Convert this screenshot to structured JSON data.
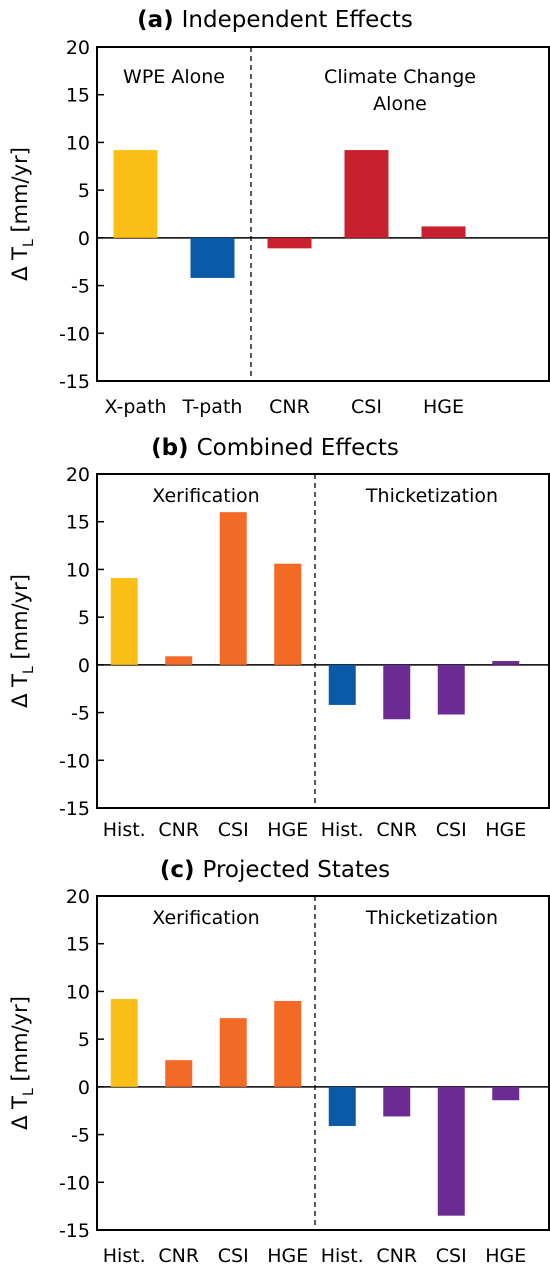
{
  "colors": {
    "yellow": "#fcbf17",
    "blue": "#0b5aa8",
    "red": "#c8202f",
    "orange": "#f26a26",
    "purple": "#6b2b93"
  },
  "chart_data": [
    {
      "type": "bar",
      "panel_letter": "(a)",
      "title": "Independent Effects",
      "ylabel": "Δ T_L [mm/yr]",
      "ylabel_main": "Δ T",
      "ylabel_sub": "L",
      "ylabel_units": "[mm/yr]",
      "ylim": [
        -15,
        20
      ],
      "yticks": [
        20,
        15,
        10,
        5,
        0,
        -5,
        -10,
        -15
      ],
      "categories": [
        "X-path",
        "T-path",
        "CNR",
        "CSI",
        "HGE"
      ],
      "values": [
        9.2,
        -4.2,
        -1.1,
        9.2,
        1.2
      ],
      "bar_colors": [
        "yellow",
        "blue",
        "red",
        "red",
        "red"
      ],
      "groups": [
        {
          "label_lines": [
            "WPE Alone"
          ]
        },
        {
          "label_lines": [
            "Climate Change",
            "Alone"
          ]
        }
      ],
      "divider_after_category": 1
    },
    {
      "type": "bar",
      "panel_letter": "(b)",
      "title": "Combined Effects",
      "ylabel": "Δ T_L [mm/yr]",
      "ylabel_main": "Δ T",
      "ylabel_sub": "L",
      "ylabel_units": "[mm/yr]",
      "ylim": [
        -15,
        20
      ],
      "yticks": [
        20,
        15,
        10,
        5,
        0,
        -5,
        -10,
        -15
      ],
      "categories": [
        "Hist.",
        "CNR",
        "CSI",
        "HGE",
        "Hist.",
        "CNR",
        "CSI",
        "HGE"
      ],
      "values": [
        9.1,
        0.9,
        16.0,
        10.6,
        -4.2,
        -5.7,
        -5.2,
        0.4
      ],
      "bar_colors": [
        "yellow",
        "orange",
        "orange",
        "orange",
        "blue",
        "purple",
        "purple",
        "purple"
      ],
      "groups": [
        {
          "label_lines": [
            "Xerification"
          ]
        },
        {
          "label_lines": [
            "Thicketization"
          ]
        }
      ],
      "divider_after_category": 3
    },
    {
      "type": "bar",
      "panel_letter": "(c)",
      "title": "Projected States",
      "ylabel": "Δ T_L [mm/yr]",
      "ylabel_main": "Δ T",
      "ylabel_sub": "L",
      "ylabel_units": "[mm/yr]",
      "ylim": [
        -15,
        20
      ],
      "yticks": [
        20,
        15,
        10,
        5,
        0,
        -5,
        -10,
        -15
      ],
      "categories": [
        "Hist.",
        "CNR",
        "CSI",
        "HGE",
        "Hist.",
        "CNR",
        "CSI",
        "HGE"
      ],
      "values": [
        9.2,
        2.8,
        7.2,
        9.0,
        -4.1,
        -3.1,
        -13.5,
        -1.4
      ],
      "bar_colors": [
        "yellow",
        "orange",
        "orange",
        "orange",
        "blue",
        "purple",
        "purple",
        "purple"
      ],
      "groups": [
        {
          "label_lines": [
            "Xerification"
          ]
        },
        {
          "label_lines": [
            "Thicketization"
          ]
        }
      ],
      "divider_after_category": 3
    }
  ]
}
